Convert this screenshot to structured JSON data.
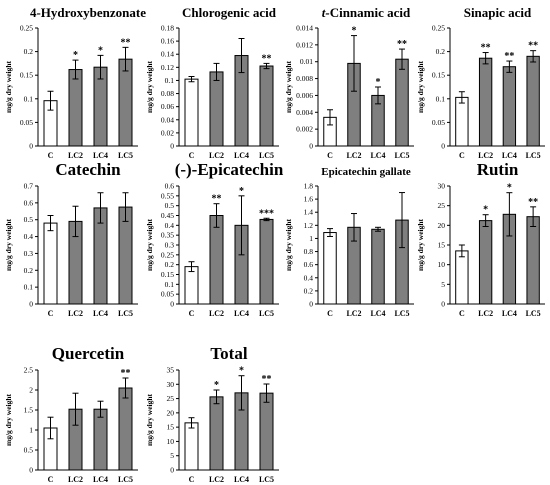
{
  "figure": {
    "x_categories": [
      "C",
      "LC2",
      "LC4",
      "LC5"
    ],
    "bar_colors": {
      "control": "#ffffff",
      "treatment": "#7f7f7f"
    },
    "outline_color": "#000000"
  },
  "chart_data": [
    {
      "type": "bar",
      "title": "4-Hydroxybenzonate",
      "ylabel": "mg/g dry weight",
      "categories": [
        "C",
        "LC2",
        "LC4",
        "LC5"
      ],
      "values": [
        0.096,
        0.162,
        0.167,
        0.184
      ],
      "errors": [
        0.02,
        0.02,
        0.025,
        0.025
      ],
      "significance": [
        "",
        "*",
        "*",
        "**"
      ],
      "ylim": [
        0,
        0.25
      ],
      "yticks": [
        "0",
        "0.05",
        "0.1",
        "0.15",
        "0.2",
        "0.25"
      ]
    },
    {
      "type": "bar",
      "title": "Chlorogenic acid",
      "ylabel": "mg/g dry weight",
      "categories": [
        "C",
        "LC2",
        "LC4",
        "LC5"
      ],
      "values": [
        0.102,
        0.113,
        0.138,
        0.122
      ],
      "errors": [
        0.004,
        0.013,
        0.026,
        0.004
      ],
      "significance": [
        "",
        "",
        "",
        "**"
      ],
      "ylim": [
        0,
        0.18
      ],
      "yticks": [
        "0",
        "0.02",
        "0.04",
        "0.06",
        "0.08",
        "0.1",
        "0.12",
        "0.14",
        "0.16",
        "0.18"
      ]
    },
    {
      "type": "bar",
      "title": "t-Cinnamic acid",
      "ylabel": "mg/g dry weight",
      "categories": [
        "C",
        "LC2",
        "LC4",
        "LC5"
      ],
      "values": [
        0.0034,
        0.0098,
        0.006,
        0.0103
      ],
      "errors": [
        0.0009,
        0.0033,
        0.001,
        0.0012
      ],
      "significance": [
        "",
        "*",
        "*",
        "**"
      ],
      "ylim": [
        0,
        0.014
      ],
      "yticks": [
        "0",
        "0.002",
        "0.004",
        "0.006",
        "0.008",
        "0.01",
        "0.012",
        "0.014"
      ]
    },
    {
      "type": "bar",
      "title": "Sinapic acid",
      "ylabel": "mg/g dry weight",
      "categories": [
        "C",
        "LC2",
        "LC4",
        "LC5"
      ],
      "values": [
        0.103,
        0.186,
        0.168,
        0.19
      ],
      "errors": [
        0.012,
        0.012,
        0.012,
        0.012
      ],
      "significance": [
        "",
        "**",
        "**",
        "**"
      ],
      "ylim": [
        0,
        0.25
      ],
      "yticks": [
        "0",
        "0.05",
        "0.1",
        "0.15",
        "0.2",
        "0.25"
      ]
    },
    {
      "type": "bar",
      "title": "Catechin",
      "ylabel": "mg/g dry weight",
      "categories": [
        "C",
        "LC2",
        "LC4",
        "LC5"
      ],
      "values": [
        0.48,
        0.49,
        0.57,
        0.575
      ],
      "errors": [
        0.045,
        0.09,
        0.09,
        0.085
      ],
      "significance": [
        "",
        "",
        "",
        ""
      ],
      "ylim": [
        0,
        0.7
      ],
      "yticks": [
        "0",
        "0.1",
        "0.2",
        "0.3",
        "0.4",
        "0.5",
        "0.6",
        "0.7"
      ]
    },
    {
      "type": "bar",
      "title": "(-)-Epicatechin",
      "ylabel": "mg/g dry weight",
      "categories": [
        "C",
        "LC2",
        "LC4",
        "LC5"
      ],
      "values": [
        0.19,
        0.45,
        0.4,
        0.43
      ],
      "errors": [
        0.025,
        0.06,
        0.15,
        0.006
      ],
      "significance": [
        "",
        "**",
        "*",
        "***"
      ],
      "ylim": [
        0,
        0.6
      ],
      "yticks": [
        "0",
        "0.05",
        "0.1",
        "0.15",
        "0.2",
        "0.25",
        "0.3",
        "0.35",
        "0.4",
        "0.45",
        "0.5",
        "0.55",
        "0.6"
      ]
    },
    {
      "type": "bar",
      "title": "Epicatechin gallate",
      "ylabel": "mg/g dry weight",
      "categories": [
        "C",
        "LC2",
        "LC4",
        "LC5"
      ],
      "values": [
        1.09,
        1.17,
        1.14,
        1.28
      ],
      "errors": [
        0.06,
        0.21,
        0.03,
        0.42
      ],
      "significance": [
        "",
        "",
        "",
        ""
      ],
      "ylim": [
        0,
        1.8
      ],
      "yticks": [
        "0",
        "0.2",
        "0.4",
        "0.6",
        "0.8",
        "1",
        "1.2",
        "1.4",
        "1.6",
        "1.8"
      ]
    },
    {
      "type": "bar",
      "title": "Rutin",
      "ylabel": "mg/g dry weight",
      "categories": [
        "C",
        "LC2",
        "LC4",
        "LC5"
      ],
      "values": [
        13.5,
        21.2,
        22.8,
        22.2
      ],
      "errors": [
        1.5,
        1.5,
        5.5,
        2.5
      ],
      "significance": [
        "",
        "*",
        "*",
        "**"
      ],
      "ylim": [
        0,
        30
      ],
      "yticks": [
        "0",
        "5",
        "10",
        "15",
        "20",
        "25",
        "30"
      ]
    },
    {
      "type": "bar",
      "title": "Quercetin",
      "ylabel": "mg/g dry weight",
      "categories": [
        "C",
        "LC2",
        "LC4",
        "LC5"
      ],
      "values": [
        1.05,
        1.52,
        1.52,
        2.05
      ],
      "errors": [
        0.27,
        0.4,
        0.2,
        0.25
      ],
      "significance": [
        "",
        "",
        "",
        "**"
      ],
      "ylim": [
        0,
        2.5
      ],
      "yticks": [
        "0",
        "0.5",
        "1",
        "1.5",
        "2",
        "2.5"
      ]
    },
    {
      "type": "bar",
      "title": "Total",
      "ylabel": "mg/g dry weight",
      "categories": [
        "C",
        "LC2",
        "LC4",
        "LC5"
      ],
      "values": [
        16.5,
        25.6,
        27.0,
        26.9
      ],
      "errors": [
        1.8,
        2.4,
        6.0,
        3.2
      ],
      "significance": [
        "",
        "*",
        "*",
        "**"
      ],
      "ylim": [
        0,
        35
      ],
      "yticks": [
        "0",
        "5",
        "10",
        "15",
        "20",
        "25",
        "30",
        "35"
      ]
    }
  ]
}
